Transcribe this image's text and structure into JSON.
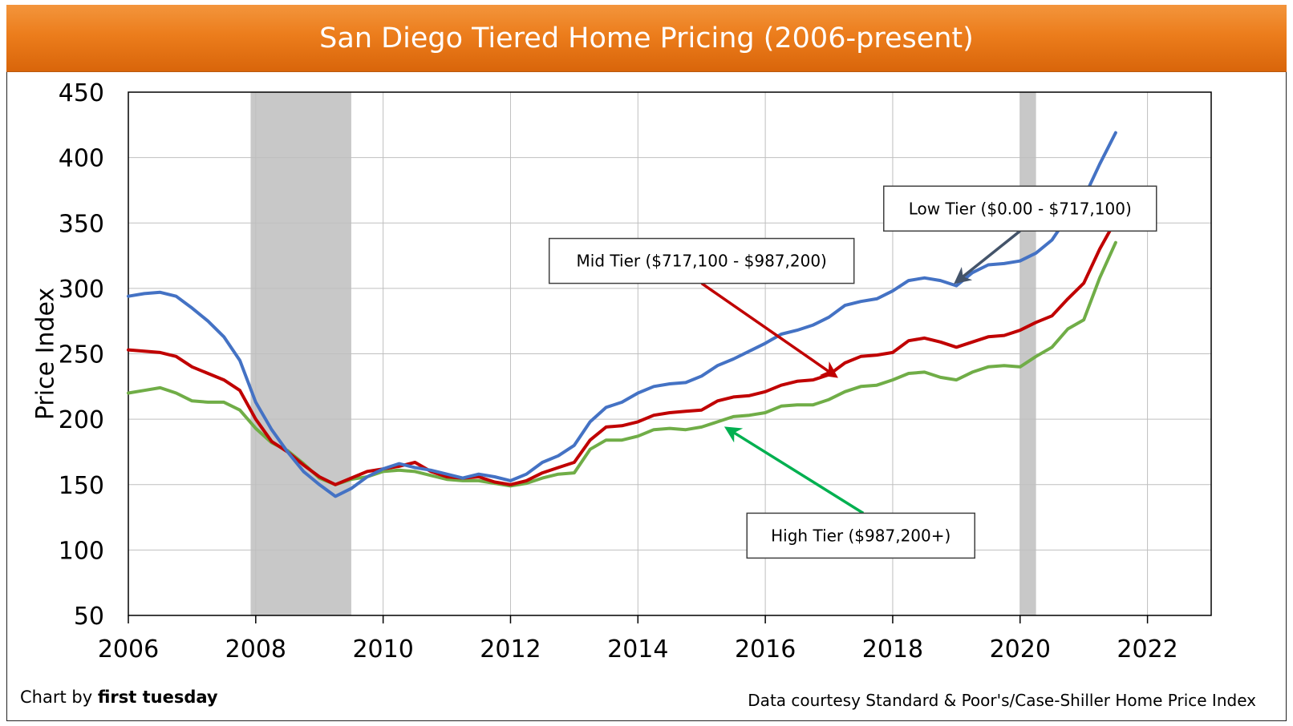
{
  "title": "San Diego Tiered Home Pricing (2006-present)",
  "credit_prefix": "Chart by ",
  "credit_brand": "first tuesday",
  "source_note": "Data courtesy Standard & Poor's/Case-Shiller Home Price Index",
  "colors": {
    "low": "#4472c4",
    "mid": "#c00000",
    "high": "#70ad47",
    "recession": "#c8c8c8",
    "high_arrow": "#00b050",
    "low_arrow": "#44546a"
  },
  "chart_data": {
    "type": "line",
    "title": "San Diego Tiered Home Pricing (2006-present)",
    "xlabel": "",
    "ylabel": "Price Index",
    "xlim": [
      2006,
      2023
    ],
    "ylim": [
      50,
      450
    ],
    "x_ticks": [
      2006,
      2008,
      2010,
      2012,
      2014,
      2016,
      2018,
      2020,
      2022
    ],
    "y_ticks": [
      50,
      100,
      150,
      200,
      250,
      300,
      350,
      400,
      450
    ],
    "grid": true,
    "shaded_periods": [
      [
        2007.92,
        2009.5
      ],
      [
        2020.0,
        2020.25
      ]
    ],
    "series": [
      {
        "name": "Low Tier ($0.00 - $717,100)",
        "color": "#4472c4",
        "x": [
          2006.0,
          2006.25,
          2006.5,
          2006.75,
          2007.0,
          2007.25,
          2007.5,
          2007.75,
          2008.0,
          2008.25,
          2008.5,
          2008.75,
          2009.0,
          2009.25,
          2009.5,
          2009.75,
          2010.0,
          2010.25,
          2010.5,
          2010.75,
          2011.0,
          2011.25,
          2011.5,
          2011.75,
          2012.0,
          2012.25,
          2012.5,
          2012.75,
          2013.0,
          2013.25,
          2013.5,
          2013.75,
          2014.0,
          2014.25,
          2014.5,
          2014.75,
          2015.0,
          2015.25,
          2015.5,
          2015.75,
          2016.0,
          2016.25,
          2016.5,
          2016.75,
          2017.0,
          2017.25,
          2017.5,
          2017.75,
          2018.0,
          2018.25,
          2018.5,
          2018.75,
          2019.0,
          2019.25,
          2019.5,
          2019.75,
          2020.0,
          2020.25,
          2020.5,
          2020.75,
          2021.0,
          2021.25,
          2021.5
        ],
        "y": [
          294,
          296,
          297,
          294,
          285,
          275,
          263,
          245,
          213,
          192,
          175,
          160,
          150,
          141,
          147,
          156,
          162,
          166,
          163,
          161,
          158,
          155,
          158,
          156,
          153,
          158,
          167,
          172,
          180,
          198,
          209,
          213,
          220,
          225,
          227,
          228,
          233,
          241,
          246,
          252,
          258,
          265,
          268,
          272,
          278,
          287,
          290,
          292,
          298,
          306,
          308,
          306,
          302,
          312,
          318,
          319,
          321,
          327,
          337,
          355,
          369,
          395,
          419
        ]
      },
      {
        "name": "Mid Tier ($717,100 - $987,200)",
        "color": "#c00000",
        "x": [
          2006.0,
          2006.25,
          2006.5,
          2006.75,
          2007.0,
          2007.25,
          2007.5,
          2007.75,
          2008.0,
          2008.25,
          2008.5,
          2008.75,
          2009.0,
          2009.25,
          2009.5,
          2009.75,
          2010.0,
          2010.25,
          2010.5,
          2010.75,
          2011.0,
          2011.25,
          2011.5,
          2011.75,
          2012.0,
          2012.25,
          2012.5,
          2012.75,
          2013.0,
          2013.25,
          2013.5,
          2013.75,
          2014.0,
          2014.25,
          2014.5,
          2014.75,
          2015.0,
          2015.25,
          2015.5,
          2015.75,
          2016.0,
          2016.25,
          2016.5,
          2016.75,
          2017.0,
          2017.25,
          2017.5,
          2017.75,
          2018.0,
          2018.25,
          2018.5,
          2018.75,
          2019.0,
          2019.25,
          2019.5,
          2019.75,
          2020.0,
          2020.25,
          2020.5,
          2020.75,
          2021.0,
          2021.25,
          2021.5
        ],
        "y": [
          253,
          252,
          251,
          248,
          240,
          235,
          230,
          222,
          200,
          183,
          175,
          165,
          156,
          150,
          155,
          160,
          162,
          164,
          167,
          160,
          156,
          155,
          156,
          152,
          150,
          153,
          159,
          163,
          167,
          184,
          194,
          195,
          198,
          203,
          205,
          206,
          207,
          214,
          217,
          218,
          221,
          226,
          229,
          230,
          234,
          243,
          248,
          249,
          251,
          260,
          262,
          259,
          255,
          259,
          263,
          264,
          268,
          274,
          279,
          292,
          304,
          330,
          352
        ]
      },
      {
        "name": "High Tier ($987,200+)",
        "color": "#70ad47",
        "x": [
          2006.0,
          2006.25,
          2006.5,
          2006.75,
          2007.0,
          2007.25,
          2007.5,
          2007.75,
          2008.0,
          2008.25,
          2008.5,
          2008.75,
          2009.0,
          2009.25,
          2009.5,
          2009.75,
          2010.0,
          2010.25,
          2010.5,
          2010.75,
          2011.0,
          2011.25,
          2011.5,
          2011.75,
          2012.0,
          2012.25,
          2012.5,
          2012.75,
          2013.0,
          2013.25,
          2013.5,
          2013.75,
          2014.0,
          2014.25,
          2014.5,
          2014.75,
          2015.0,
          2015.25,
          2015.5,
          2015.75,
          2016.0,
          2016.25,
          2016.5,
          2016.75,
          2017.0,
          2017.25,
          2017.5,
          2017.75,
          2018.0,
          2018.25,
          2018.5,
          2018.75,
          2019.0,
          2019.25,
          2019.5,
          2019.75,
          2020.0,
          2020.25,
          2020.5,
          2020.75,
          2021.0,
          2021.25,
          2021.5
        ],
        "y": [
          220,
          222,
          224,
          220,
          214,
          213,
          213,
          207,
          193,
          182,
          176,
          166,
          155,
          150,
          154,
          156,
          160,
          161,
          160,
          157,
          154,
          153,
          153,
          151,
          149,
          151,
          155,
          158,
          159,
          177,
          184,
          184,
          187,
          192,
          193,
          192,
          194,
          198,
          202,
          203,
          205,
          210,
          211,
          211,
          215,
          221,
          225,
          226,
          230,
          235,
          236,
          232,
          230,
          236,
          240,
          241,
          240,
          248,
          255,
          269,
          276,
          308,
          335
        ]
      }
    ],
    "annotations": [
      {
        "text": "Low Tier ($0.00 - $717,100)",
        "box": [
          2020.0,
          361
        ],
        "target": [
          2019.0,
          305
        ]
      },
      {
        "text": "Mid Tier ($717,100 - $987,200)",
        "box": [
          2015.0,
          321
        ],
        "target": [
          2017.1,
          233
        ]
      },
      {
        "text": "High Tier ($987,200+)",
        "box": [
          2017.5,
          111
        ],
        "target": [
          2015.4,
          193
        ]
      }
    ]
  }
}
